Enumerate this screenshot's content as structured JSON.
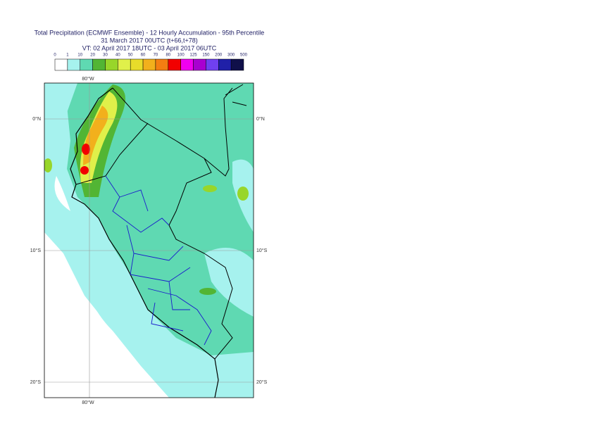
{
  "header": {
    "title": "Total Precipitation (ECMWF Ensemble) - 12 Hourly Accumulation - 95th Percentile",
    "base_time": "31 March 2017 00UTC (t+66,t+78)",
    "valid_time": "VT: 02 April 2017 18UTC - 03 April 2017 06UTC"
  },
  "legend": {
    "levels": [
      "0",
      "1",
      "10",
      "20",
      "30",
      "40",
      "50",
      "60",
      "70",
      "80",
      "100",
      "125",
      "150",
      "200",
      "300",
      "500"
    ],
    "colors": [
      "#ffffff",
      "#a6f2ee",
      "#5fd9b2",
      "#52b534",
      "#98d62a",
      "#e0f04a",
      "#e8dc2a",
      "#f2b01c",
      "#f47e12",
      "#f20000",
      "#f000f0",
      "#a800d0",
      "#7040f0",
      "#2020a8",
      "#10104a"
    ]
  },
  "map": {
    "lon_labels": {
      "top": "80°W",
      "bottom": "80°W"
    },
    "lat_labels": {
      "left": [
        "0°N",
        "10°S",
        "20°S"
      ],
      "right": [
        "0°N",
        "10°S",
        "20°S"
      ]
    }
  }
}
